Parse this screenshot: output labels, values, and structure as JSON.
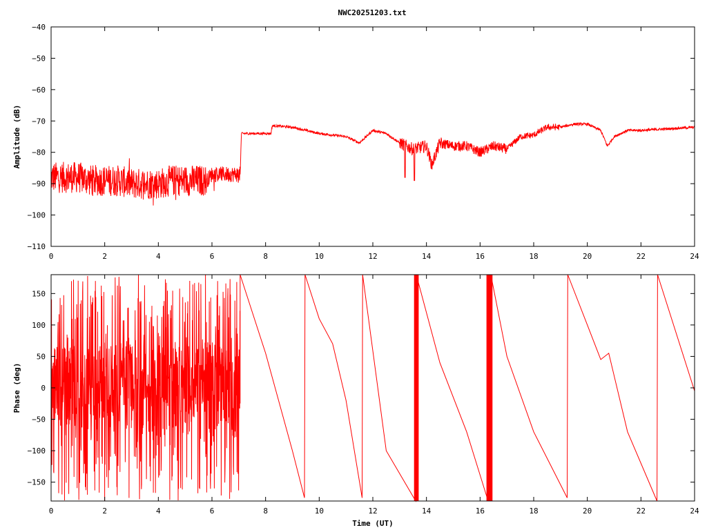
{
  "title": "NWC20251203.txt",
  "colors": {
    "series": "#ff0000",
    "axes": "#000000",
    "background": "#ffffff"
  },
  "chart_data": [
    {
      "type": "line",
      "title": "NWC20251203.txt",
      "xlabel": "",
      "ylabel": "Amplitude (dB)",
      "xlim": [
        0,
        24
      ],
      "ylim": [
        -110,
        -40
      ],
      "xticks": [
        0,
        2,
        4,
        6,
        8,
        10,
        12,
        14,
        16,
        18,
        20,
        22,
        24
      ],
      "yticks": [
        -110,
        -100,
        -90,
        -80,
        -70,
        -60,
        -50,
        -40
      ],
      "grid": false,
      "series": [
        {
          "x": [
            0,
            0.5,
            1,
            1.5,
            2,
            2.5,
            3,
            3.5,
            4,
            4.5,
            5,
            5.5,
            5.8,
            6,
            6.5,
            7.05,
            7.1,
            7.5,
            8.2,
            8.25,
            9,
            10,
            11,
            11.5,
            12,
            12.5,
            13,
            13.5,
            14,
            14.2,
            14.5,
            15,
            15.5,
            16,
            16.5,
            17,
            17.5,
            18,
            18.5,
            19,
            19.5,
            20,
            20.5,
            20.75,
            21,
            21.5,
            22,
            23,
            24
          ],
          "y": [
            -88,
            -88,
            -88,
            -89,
            -89,
            -89,
            -90,
            -90,
            -90,
            -89,
            -89,
            -89,
            -89,
            -87,
            -87,
            -87,
            -74,
            -74,
            -74,
            -71.5,
            -72,
            -74,
            -75,
            -77,
            -73,
            -74,
            -77,
            -79,
            -78,
            -84,
            -77,
            -78,
            -78,
            -80,
            -78,
            -79,
            -75,
            -74.5,
            -72,
            -72,
            -71,
            -71,
            -73,
            -78,
            -75,
            -73,
            -73,
            -72.5,
            -72
          ]
        }
      ],
      "notes": "amplitude noisy (about +/-5 dB) before 7 UT, with dips near 13.2 and 13.5 UT"
    },
    {
      "type": "line",
      "title": "",
      "xlabel": "Time (UT)",
      "ylabel": "Phase (deg)",
      "xlim": [
        0,
        24
      ],
      "ylim": [
        -180,
        180
      ],
      "xticks": [
        0,
        2,
        4,
        6,
        8,
        10,
        12,
        14,
        16,
        18,
        20,
        22,
        24
      ],
      "yticks": [
        -150,
        -100,
        -50,
        0,
        50,
        100,
        150
      ],
      "grid": false,
      "series": [
        {
          "x": [
            7.05,
            8,
            9,
            9.45,
            9.47,
            10,
            10.5,
            11,
            11.6,
            11.62,
            12.5,
            13.6,
            13.62,
            14.5,
            15.5,
            16.3,
            16.4,
            17,
            18,
            19.25,
            19.27,
            20,
            20.5,
            20.8,
            21.5,
            22.6,
            22.62,
            24
          ],
          "y": [
            180,
            55,
            -100,
            -175,
            180,
            110,
            70,
            -20,
            -175,
            180,
            -100,
            -180,
            180,
            40,
            -70,
            -180,
            180,
            50,
            -70,
            -175,
            180,
            100,
            45,
            55,
            -70,
            -180,
            180,
            -5
          ]
        }
      ],
      "notes": "phase random across full range before 7 UT, then linear drift with wraps at 9.45, 11.6, 13.6, 16.35, 19.25, 22.6 UT"
    }
  ]
}
